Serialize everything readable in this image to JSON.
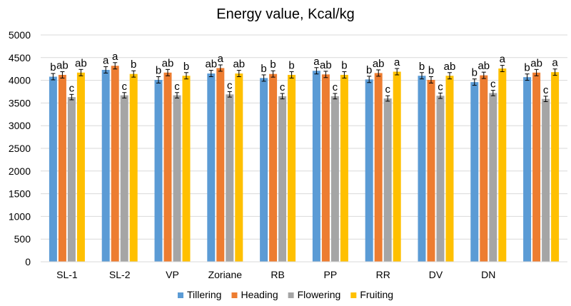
{
  "chart_data": {
    "type": "bar",
    "title": "Energy value, Kcal/kg",
    "xlabel": "",
    "ylabel": "",
    "ylim": [
      0,
      5000
    ],
    "yticks": [
      0,
      500,
      1000,
      1500,
      2000,
      2500,
      3000,
      3500,
      4000,
      4500,
      5000
    ],
    "grid": true,
    "legend_position": "bottom",
    "categories": [
      "SL-1",
      "SL-2",
      "VP",
      "Zoriane",
      "RB",
      "PP",
      "RR",
      "DV",
      "DN",
      ""
    ],
    "series": [
      {
        "name": "Tillering",
        "color": "#5b9bd5",
        "values": [
          4080,
          4230,
          4010,
          4150,
          4050,
          4210,
          4020,
          4100,
          3960,
          4070
        ],
        "errors": [
          70,
          70,
          70,
          70,
          70,
          70,
          70,
          70,
          70,
          70
        ],
        "labels": [
          "b",
          "a",
          "b",
          "ab",
          "b",
          "a",
          "b",
          "b",
          "b",
          "b"
        ]
      },
      {
        "name": "Heading",
        "color": "#ed7d31",
        "values": [
          4120,
          4320,
          4170,
          4270,
          4140,
          4130,
          4160,
          4010,
          4110,
          4170
        ],
        "errors": [
          70,
          70,
          70,
          70,
          70,
          70,
          70,
          70,
          70,
          70
        ],
        "labels": [
          "ab",
          "a",
          "ab",
          "a",
          "b",
          "ab",
          "ab",
          "b",
          "ab",
          "ab"
        ]
      },
      {
        "name": "Flowering",
        "color": "#a5a5a5",
        "values": [
          3630,
          3670,
          3670,
          3690,
          3650,
          3650,
          3600,
          3660,
          3720,
          3590
        ],
        "errors": [
          60,
          60,
          60,
          60,
          60,
          60,
          60,
          60,
          60,
          60
        ],
        "labels": [
          "c",
          "c",
          "c",
          "c",
          "c",
          "c",
          "c",
          "c",
          "c",
          "c"
        ]
      },
      {
        "name": "Fruiting",
        "color": "#ffc000",
        "values": [
          4170,
          4140,
          4100,
          4150,
          4120,
          4120,
          4190,
          4100,
          4260,
          4180
        ],
        "errors": [
          70,
          70,
          70,
          70,
          70,
          70,
          70,
          70,
          70,
          70
        ],
        "labels": [
          "ab",
          "b",
          "b",
          "ab",
          "b",
          "b",
          "a",
          "ab",
          "a",
          "a"
        ]
      }
    ]
  }
}
